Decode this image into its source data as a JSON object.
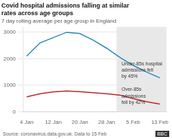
{
  "chart_data": {
    "type": "line",
    "title": "Covid hospital admissions falling at similar\nrates across age groups",
    "subtitle": "7 day rolling average per age group in England",
    "source": "Source: coronavirus.data.gov.uk. Data to 15 Feb",
    "credit": "BBC",
    "x": [
      0,
      4,
      8,
      12,
      16,
      20,
      24,
      28,
      32,
      36,
      40
    ],
    "series": [
      {
        "color": "#2288bb",
        "values": [
          2100,
          2600,
          2800,
          3000,
          2950,
          2700,
          2400,
          2050,
          1750,
          1500,
          1280
        ]
      },
      {
        "color": "#bb2222",
        "values": [
          560,
          680,
          750,
          780,
          760,
          720,
          680,
          630,
          500,
          380,
          290
        ]
      }
    ],
    "xlim": [
      -1,
      42
    ],
    "xticks": [
      {
        "value": 0,
        "label": "4 Jan"
      },
      {
        "value": 8,
        "label": "12 Jan"
      },
      {
        "value": 16,
        "label": "20 Jan"
      },
      {
        "value": 24,
        "label": "28 Jan"
      },
      {
        "value": 32,
        "label": "5 Feb"
      },
      {
        "value": 40,
        "label": "13 Feb"
      }
    ],
    "ylim": [
      0,
      3200
    ],
    "yticks": [
      0,
      1000,
      2000,
      3000
    ],
    "grid": "y",
    "spans": [
      {
        "x0": 27,
        "x1": 42,
        "color": "#e8e8e8"
      }
    ],
    "annotations": [
      {
        "text": "Under-85s hospital\nadmissions fell\nby 45%",
        "x": 28.5,
        "y": 1900
      },
      {
        "text": "Over-85s\nadmissions\nfell by 42%",
        "x": 28.5,
        "y": 920
      }
    ]
  }
}
